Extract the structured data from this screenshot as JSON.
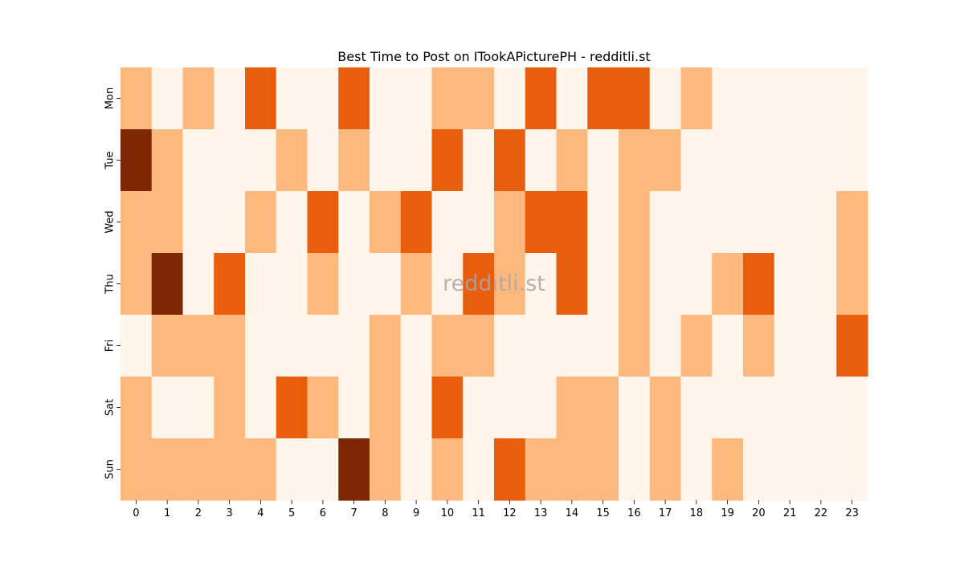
{
  "chart_data": {
    "type": "heatmap",
    "title": "Best Time to Post on ITookAPicturePH - redditli.st",
    "watermark": "redditli.st",
    "xlabel": "",
    "ylabel": "",
    "x_categories": [
      "0",
      "1",
      "2",
      "3",
      "4",
      "5",
      "6",
      "7",
      "8",
      "9",
      "10",
      "11",
      "12",
      "13",
      "14",
      "15",
      "16",
      "17",
      "18",
      "19",
      "20",
      "21",
      "22",
      "23"
    ],
    "y_categories": [
      "Mon",
      "Tue",
      "Wed",
      "Thu",
      "Fri",
      "Sat",
      "Sun"
    ],
    "value_range": [
      0,
      3
    ],
    "colors": [
      "#fff5eb",
      "#fdb97d",
      "#e95e0d",
      "#7f2704"
    ],
    "colorbar": false,
    "values": [
      [
        1,
        0,
        1,
        0,
        2,
        0,
        0,
        2,
        0,
        0,
        1,
        1,
        0,
        2,
        0,
        2,
        2,
        0,
        1,
        0,
        0,
        0,
        0,
        0
      ],
      [
        3,
        1,
        0,
        0,
        0,
        1,
        0,
        1,
        0,
        0,
        2,
        0,
        2,
        0,
        1,
        0,
        1,
        1,
        0,
        0,
        0,
        0,
        0,
        0
      ],
      [
        1,
        1,
        0,
        0,
        1,
        0,
        2,
        0,
        1,
        2,
        0,
        0,
        1,
        2,
        2,
        0,
        1,
        0,
        0,
        0,
        0,
        0,
        0,
        1
      ],
      [
        1,
        3,
        0,
        2,
        0,
        0,
        1,
        0,
        0,
        1,
        0,
        2,
        1,
        0,
        2,
        0,
        1,
        0,
        0,
        1,
        2,
        0,
        0,
        1
      ],
      [
        0,
        1,
        1,
        1,
        0,
        0,
        0,
        0,
        1,
        0,
        1,
        1,
        0,
        0,
        0,
        0,
        1,
        0,
        1,
        0,
        1,
        0,
        0,
        2
      ],
      [
        1,
        0,
        0,
        1,
        0,
        2,
        1,
        0,
        1,
        0,
        2,
        0,
        0,
        0,
        1,
        1,
        0,
        1,
        0,
        0,
        0,
        0,
        0,
        0
      ],
      [
        1,
        1,
        1,
        1,
        1,
        0,
        0,
        3,
        1,
        0,
        1,
        0,
        2,
        1,
        1,
        1,
        0,
        1,
        0,
        1,
        0,
        0,
        0,
        0
      ]
    ]
  }
}
